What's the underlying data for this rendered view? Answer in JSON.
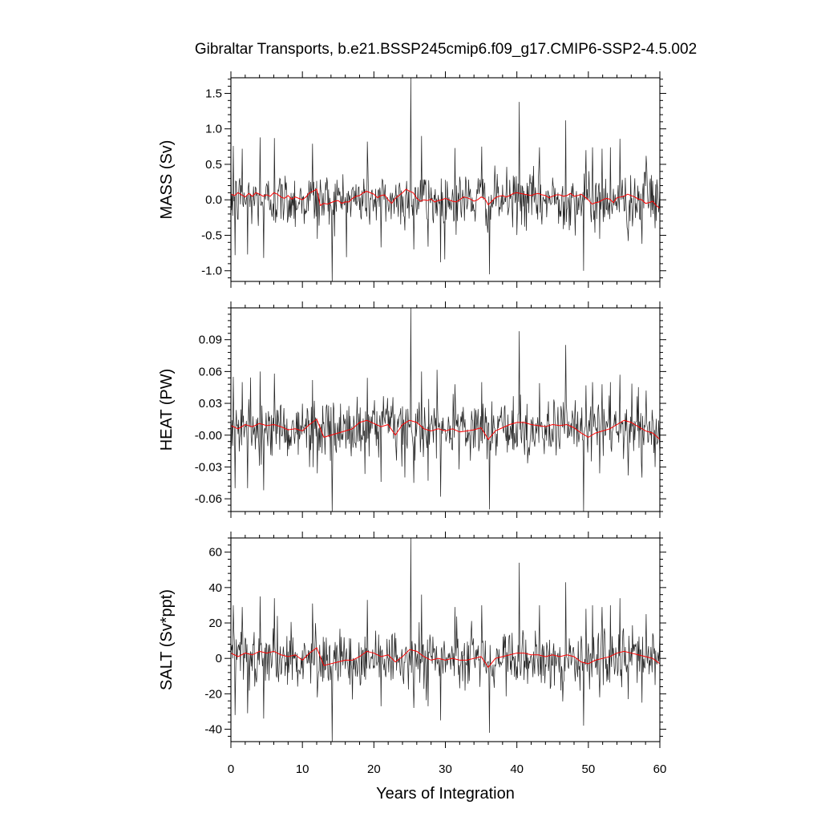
{
  "chart_data": [
    {
      "type": "line",
      "title": "Gibraltar Transports, b.e21.BSSP245cmip6.f09_g17.CMIP6-SSP2-4.5.002",
      "xlabel": "",
      "ylabel": "MASS (Sv)",
      "xlim": [
        0,
        60
      ],
      "ylim": [
        -1.15,
        1.72
      ],
      "ytick_values": [
        -1.0,
        -0.5,
        0.0,
        0.5,
        1.0,
        1.5
      ],
      "ytick_labels": [
        "-1.0",
        "-0.5",
        "0.0",
        "0.5",
        "1.0",
        "1.5"
      ],
      "series": [
        {
          "style": "monthly",
          "color": "#000000",
          "noise_sd": 0.2,
          "mean": 0.0,
          "spikes": [
            [
              0.3,
              0.76
            ],
            [
              0.6,
              -0.78
            ],
            [
              1.6,
              0.72
            ],
            [
              2.3,
              -0.77
            ],
            [
              4.1,
              0.88
            ],
            [
              4.6,
              -0.82
            ],
            [
              6.1,
              0.87
            ],
            [
              11.4,
              0.79
            ],
            [
              12.1,
              -0.55
            ],
            [
              14.2,
              -1.15
            ],
            [
              19.1,
              0.82
            ],
            [
              21.0,
              -0.67
            ],
            [
              25.2,
              1.72
            ],
            [
              25.6,
              -0.7
            ],
            [
              26.7,
              0.9
            ],
            [
              27.6,
              -0.66
            ],
            [
              29.3,
              -0.88
            ],
            [
              31.3,
              0.73
            ],
            [
              35.1,
              0.75
            ],
            [
              36.2,
              -1.05
            ],
            [
              40.3,
              1.38
            ],
            [
              43.2,
              0.74
            ],
            [
              46.8,
              1.12
            ],
            [
              49.3,
              -1.0
            ],
            [
              49.7,
              0.7
            ],
            [
              50.6,
              0.74
            ],
            [
              51.6,
              -0.55
            ],
            [
              51.9,
              0.72
            ],
            [
              53.1,
              0.74
            ],
            [
              54.4,
              0.86
            ],
            [
              55.6,
              -0.58
            ],
            [
              57.5,
              -0.62
            ],
            [
              58.1,
              0.62
            ],
            [
              59.3,
              -0.4
            ]
          ]
        },
        {
          "style": "annual mean",
          "color": "#ff0000",
          "x": [
            0,
            0.5,
            1,
            1.5,
            2,
            2.5,
            3,
            3.5,
            4,
            4.5,
            5,
            5.5,
            6,
            6.5,
            7,
            7.5,
            8,
            8.5,
            9,
            9.5,
            10,
            10.5,
            11,
            11.5,
            12,
            12.5,
            13,
            13.5,
            14,
            14.5,
            15,
            15.5,
            16,
            16.5,
            17,
            17.5,
            18,
            18.5,
            19,
            19.5,
            20,
            20.5,
            21,
            21.5,
            22,
            22.5,
            23,
            23.5,
            24,
            24.5,
            25,
            25.5,
            26,
            26.5,
            27,
            27.5,
            28,
            28.5,
            29,
            29.5,
            30,
            30.5,
            31,
            31.5,
            32,
            32.5,
            33,
            33.5,
            34,
            34.5,
            35,
            35.5,
            36,
            36.5,
            37,
            37.5,
            38,
            38.5,
            39,
            39.5,
            40,
            40.5,
            41,
            41.5,
            42,
            42.5,
            43,
            43.5,
            44,
            44.5,
            45,
            45.5,
            46,
            46.5,
            47,
            47.5,
            48,
            48.5,
            49,
            49.5,
            50,
            50.5,
            51,
            51.5,
            52,
            52.5,
            53,
            53.5,
            54,
            54.5,
            55,
            55.5,
            56,
            56.5,
            57,
            57.5,
            58,
            58.5,
            59,
            59.5,
            60
          ],
          "y": [
            0.08,
            0.06,
            0.1,
            0.07,
            0.04,
            0.09,
            0.05,
            0.1,
            0.08,
            0.05,
            0.07,
            0.05,
            0.1,
            0.08,
            0.04,
            0.02,
            0.06,
            0.01,
            0.04,
            0.02,
            0.0,
            0.04,
            0.1,
            0.12,
            0.15,
            -0.08,
            -0.05,
            -0.06,
            -0.04,
            -0.02,
            -0.01,
            -0.05,
            -0.03,
            -0.03,
            0.02,
            0.05,
            0.06,
            0.1,
            0.12,
            0.1,
            0.08,
            0.03,
            0.06,
            0.07,
            0.0,
            -0.05,
            0.02,
            0.06,
            0.1,
            0.15,
            0.12,
            0.1,
            0.02,
            -0.02,
            0.0,
            -0.01,
            0.01,
            -0.03,
            -0.01,
            0.0,
            0.02,
            0.0,
            -0.02,
            -0.03,
            0.0,
            0.04,
            0.03,
            0.01,
            -0.02,
            0.0,
            0.04,
            0.02,
            -0.07,
            -0.02,
            0.03,
            0.05,
            0.06,
            0.04,
            0.06,
            0.09,
            0.1,
            0.09,
            0.08,
            0.07,
            0.06,
            0.08,
            0.09,
            0.07,
            0.06,
            0.03,
            0.05,
            0.07,
            0.07,
            0.05,
            0.06,
            0.09,
            0.05,
            0.06,
            0.08,
            0.04,
            0.0,
            -0.06,
            -0.04,
            -0.03,
            0.0,
            0.02,
            0.01,
            -0.04,
            0.03,
            0.04,
            0.05,
            0.08,
            0.06,
            0.04,
            0.01,
            0.0,
            -0.05,
            -0.04,
            -0.02,
            -0.08,
            -0.12
          ]
        }
      ]
    },
    {
      "type": "line",
      "title": "",
      "xlabel": "",
      "ylabel": "HEAT (PW)",
      "xlim": [
        0,
        60
      ],
      "ylim": [
        -0.072,
        0.12
      ],
      "ytick_values": [
        -0.06,
        -0.03,
        0.0,
        0.03,
        0.06,
        0.09
      ],
      "ytick_labels": [
        "-0.06",
        "-0.03",
        "-0.00",
        "0.03",
        "0.06",
        "0.09"
      ],
      "series": [
        {
          "style": "monthly",
          "color": "#000000",
          "noise_sd": 0.014,
          "mean": 0.005,
          "spikes": [
            [
              0.3,
              0.055
            ],
            [
              0.6,
              -0.05
            ],
            [
              1.6,
              0.05
            ],
            [
              2.3,
              -0.05
            ],
            [
              4.1,
              0.06
            ],
            [
              4.6,
              -0.052
            ],
            [
              6.1,
              0.058
            ],
            [
              11.4,
              0.052
            ],
            [
              12.1,
              -0.036
            ],
            [
              14.2,
              -0.072
            ],
            [
              19.1,
              0.054
            ],
            [
              21.0,
              -0.044
            ],
            [
              25.2,
              0.12
            ],
            [
              25.6,
              -0.045
            ],
            [
              26.7,
              0.06
            ],
            [
              27.6,
              -0.043
            ],
            [
              29.3,
              -0.058
            ],
            [
              31.3,
              0.048
            ],
            [
              35.1,
              0.05
            ],
            [
              36.2,
              -0.07
            ],
            [
              40.3,
              0.098
            ],
            [
              43.2,
              0.049
            ],
            [
              46.8,
              0.085
            ],
            [
              49.3,
              -0.072
            ],
            [
              49.7,
              0.047
            ],
            [
              50.6,
              0.05
            ],
            [
              51.6,
              -0.036
            ],
            [
              51.9,
              0.048
            ],
            [
              53.1,
              0.05
            ],
            [
              54.4,
              0.057
            ],
            [
              55.6,
              -0.038
            ],
            [
              57.5,
              -0.04
            ],
            [
              58.1,
              0.042
            ],
            [
              59.3,
              -0.03
            ]
          ]
        },
        {
          "style": "annual mean",
          "color": "#ff0000",
          "x": [
            0,
            1,
            2,
            3,
            4,
            5,
            6,
            7,
            8,
            9,
            10,
            11,
            12,
            13,
            14,
            15,
            16,
            17,
            18,
            19,
            20,
            21,
            22,
            23,
            24,
            25,
            26,
            27,
            28,
            29,
            30,
            31,
            32,
            33,
            34,
            35,
            36,
            37,
            38,
            39,
            40,
            41,
            42,
            43,
            44,
            45,
            46,
            47,
            48,
            49,
            50,
            51,
            52,
            53,
            54,
            55,
            56,
            57,
            58,
            59,
            60
          ],
          "y": [
            0.009,
            0.006,
            0.01,
            0.008,
            0.011,
            0.009,
            0.01,
            0.008,
            0.005,
            0.006,
            0.004,
            0.01,
            0.015,
            -0.002,
            0.0,
            0.002,
            0.004,
            0.006,
            0.012,
            0.014,
            0.011,
            0.008,
            0.01,
            0.0,
            0.01,
            0.014,
            0.012,
            0.006,
            0.004,
            0.006,
            0.004,
            0.006,
            0.003,
            0.004,
            0.005,
            0.007,
            -0.004,
            0.004,
            0.007,
            0.01,
            0.012,
            0.012,
            0.01,
            0.009,
            0.008,
            0.01,
            0.009,
            0.01,
            0.007,
            0.002,
            -0.002,
            0.002,
            0.004,
            0.006,
            0.01,
            0.014,
            0.012,
            0.008,
            0.004,
            0.002,
            -0.004
          ]
        }
      ]
    },
    {
      "type": "line",
      "title": "",
      "xlabel": "Years of Integration",
      "ylabel": "SALT (Sv*ppt)",
      "xlim": [
        0,
        60
      ],
      "ylim": [
        -47,
        68
      ],
      "ytick_values": [
        -40,
        -20,
        0,
        20,
        40,
        60
      ],
      "ytick_labels": [
        "-40",
        "-20",
        "0",
        "20",
        "40",
        "60"
      ],
      "xtick_values": [
        0,
        10,
        20,
        30,
        40,
        50,
        60
      ],
      "xtick_labels": [
        "0",
        "10",
        "20",
        "30",
        "40",
        "50",
        "60"
      ],
      "series": [
        {
          "style": "monthly",
          "color": "#000000",
          "noise_sd": 8.0,
          "mean": 0.0,
          "spikes": [
            [
              0.3,
              30
            ],
            [
              0.6,
              -32
            ],
            [
              1.6,
              29
            ],
            [
              2.3,
              -31
            ],
            [
              4.1,
              35
            ],
            [
              4.6,
              -34
            ],
            [
              6.1,
              34
            ],
            [
              11.4,
              31
            ],
            [
              12.1,
              -22
            ],
            [
              14.2,
              -47
            ],
            [
              19.1,
              33
            ],
            [
              21.0,
              -27
            ],
            [
              25.2,
              68
            ],
            [
              25.6,
              -28
            ],
            [
              26.7,
              36
            ],
            [
              27.6,
              -27
            ],
            [
              29.3,
              -35
            ],
            [
              31.3,
              29
            ],
            [
              35.1,
              30
            ],
            [
              36.2,
              -42
            ],
            [
              40.3,
              54
            ],
            [
              43.2,
              30
            ],
            [
              46.8,
              43
            ],
            [
              49.3,
              -38
            ],
            [
              49.7,
              28
            ],
            [
              50.6,
              30
            ],
            [
              51.6,
              -22
            ],
            [
              51.9,
              29
            ],
            [
              53.1,
              30
            ],
            [
              54.4,
              34
            ],
            [
              55.6,
              -23
            ],
            [
              57.5,
              -25
            ],
            [
              58.1,
              25
            ],
            [
              59.3,
              -15
            ]
          ]
        },
        {
          "style": "annual mean",
          "color": "#ff0000",
          "x": [
            0,
            1,
            2,
            3,
            4,
            5,
            6,
            7,
            8,
            9,
            10,
            11,
            12,
            13,
            14,
            15,
            16,
            17,
            18,
            19,
            20,
            21,
            22,
            23,
            24,
            25,
            26,
            27,
            28,
            29,
            30,
            31,
            32,
            33,
            34,
            35,
            36,
            37,
            38,
            39,
            40,
            41,
            42,
            43,
            44,
            45,
            46,
            47,
            48,
            49,
            50,
            51,
            52,
            53,
            54,
            55,
            56,
            57,
            58,
            59,
            60
          ],
          "y": [
            3,
            1,
            3,
            2,
            4,
            3,
            4,
            2,
            1,
            2,
            -1,
            3,
            6,
            -4,
            -3,
            -2,
            -1,
            -1,
            1,
            4,
            3,
            1,
            2,
            -2,
            1,
            5,
            4,
            1,
            -1,
            0,
            -1,
            0,
            -1,
            -1,
            0,
            1,
            -5,
            0,
            1,
            2,
            3,
            3,
            2,
            2,
            1,
            2,
            1,
            2,
            1,
            -2,
            -3,
            -1,
            0,
            1,
            3,
            4,
            3,
            2,
            1,
            0,
            -3
          ]
        }
      ]
    }
  ]
}
